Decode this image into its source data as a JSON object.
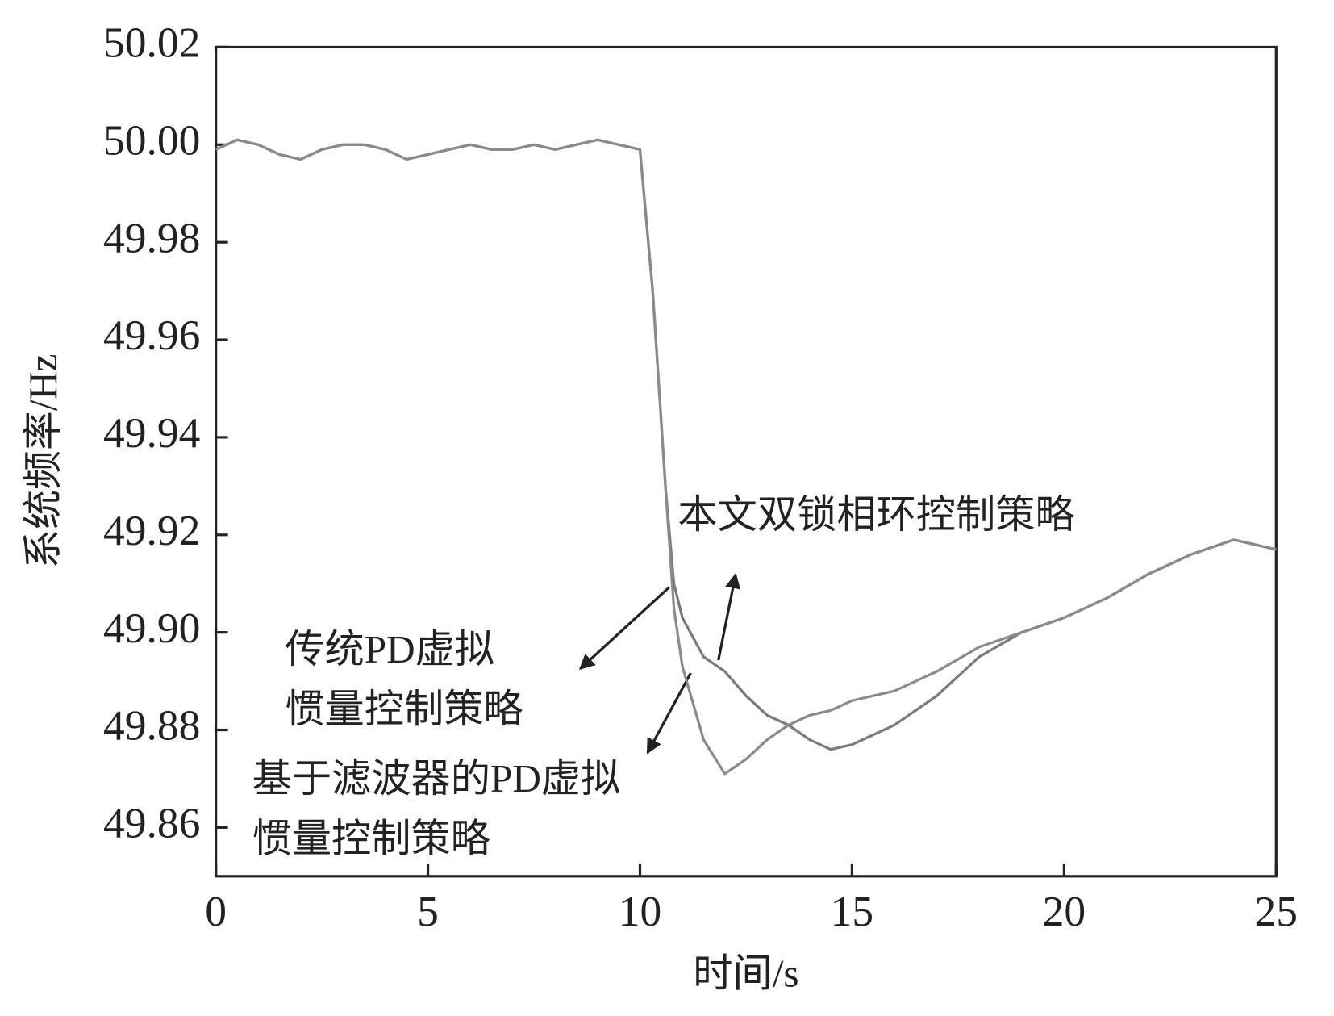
{
  "chart_data": {
    "type": "line",
    "x_label": "时间/s",
    "y_label": "系统频率/Hz",
    "xlim": [
      0,
      25
    ],
    "ylim": [
      49.85,
      50.02
    ],
    "xticks": [
      0,
      5,
      10,
      15,
      20,
      25
    ],
    "yticks": [
      49.86,
      49.88,
      {
        "value": 49.9,
        "label": "49.90"
      },
      49.92,
      49.94,
      49.96,
      49.98,
      {
        "value": 50,
        "label": "50.00"
      },
      50.02
    ],
    "x": [
      0,
      0.5,
      1,
      1.5,
      2,
      2.5,
      3,
      3.5,
      4,
      4.5,
      5,
      5.5,
      6,
      6.5,
      7,
      7.5,
      8,
      8.5,
      9,
      9.5,
      10,
      10.3,
      10.6,
      10.8,
      11,
      11.5,
      12,
      12.5,
      13,
      13.5,
      14,
      14.5,
      15,
      15.5,
      16,
      17,
      18,
      19,
      20,
      21,
      22,
      23,
      24,
      25
    ],
    "series": [
      {
        "color": "#7a7a7a",
        "values": [
          49.999,
          50.001,
          50.0,
          49.998,
          49.997,
          49.999,
          50.0,
          50.0,
          49.999,
          49.997,
          49.998,
          49.999,
          50.0,
          49.999,
          49.999,
          50.0,
          49.999,
          50.0,
          50.001,
          50.0,
          49.999,
          49.97,
          49.93,
          49.91,
          49.903,
          49.895,
          49.892,
          49.887,
          49.883,
          49.881,
          49.878,
          49.876,
          49.877,
          49.879,
          49.881,
          49.887,
          49.895,
          49.9,
          49.903,
          49.907,
          49.912,
          49.916,
          49.919,
          49.917
        ]
      },
      {
        "color": "#8a8a8a",
        "values": [
          49.999,
          50.001,
          50.0,
          49.998,
          49.997,
          49.999,
          50.0,
          50.0,
          49.999,
          49.997,
          49.998,
          49.999,
          50.0,
          49.999,
          49.999,
          50.0,
          49.999,
          50.0,
          50.001,
          50.0,
          49.999,
          49.97,
          49.93,
          49.905,
          49.893,
          49.878,
          49.871,
          49.874,
          49.878,
          49.881,
          49.883,
          49.884,
          49.886,
          49.887,
          49.888,
          49.892,
          49.897,
          49.9,
          49.903,
          49.907,
          49.912,
          49.916,
          49.919,
          49.917
        ]
      }
    ],
    "annotations": [
      {
        "lines": [
          "本文双锁相环控制策略"
        ]
      },
      {
        "lines": [
          "传统PD虚拟",
          "惯量控制策略"
        ]
      },
      {
        "lines": [
          "基于滤波器的PD虚拟",
          "惯量控制策略"
        ]
      }
    ]
  }
}
